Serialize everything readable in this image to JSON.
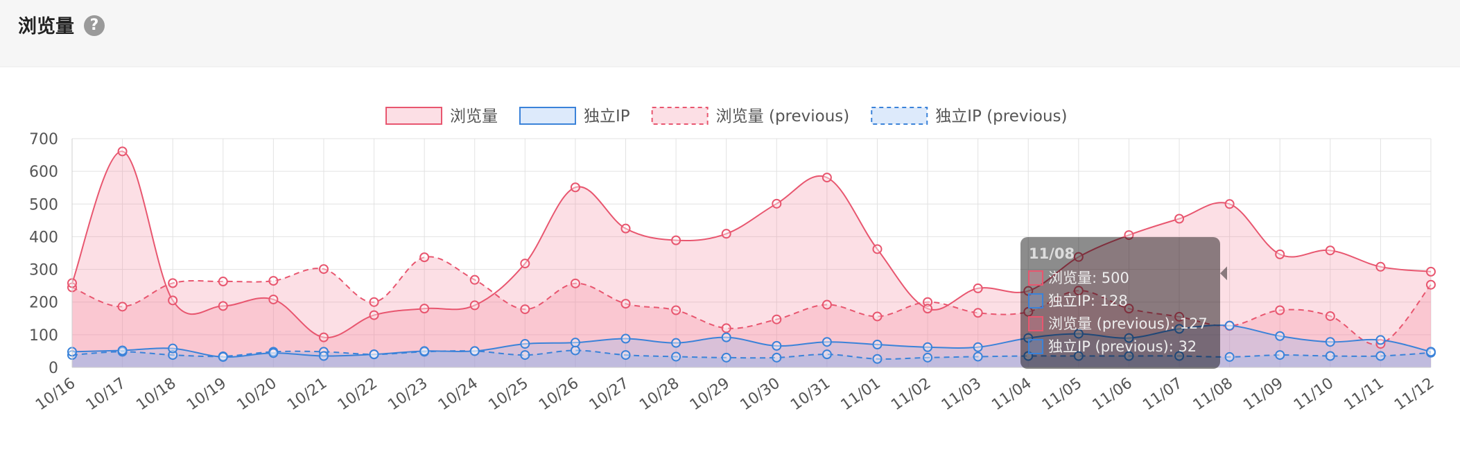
{
  "header": {
    "title": "浏览量",
    "help_icon": "question-circle-icon",
    "help_glyph": "?"
  },
  "colors": {
    "views": "#e8566f",
    "views_fill": "rgba(244,128,150,0.25)",
    "ip": "#3a82d9",
    "ip_fill": "rgba(120,170,240,0.25)",
    "grid": "#e2e2e2",
    "tick": "#555555"
  },
  "chart_data": {
    "type": "area",
    "categories": [
      "10/16",
      "10/17",
      "10/18",
      "10/19",
      "10/20",
      "10/21",
      "10/22",
      "10/23",
      "10/24",
      "10/25",
      "10/26",
      "10/27",
      "10/28",
      "10/29",
      "10/30",
      "10/31",
      "11/01",
      "11/02",
      "11/03",
      "11/04",
      "11/05",
      "11/06",
      "11/07",
      "11/08",
      "11/09",
      "11/10",
      "11/11",
      "11/12"
    ],
    "ylim": [
      0,
      700
    ],
    "yticks": [
      "0",
      "100",
      "200",
      "300",
      "400",
      "500",
      "600",
      "700"
    ],
    "grid": true,
    "legend_position": "top-center",
    "series": [
      {
        "name": "浏览量",
        "style": "solid",
        "fill": true,
        "values": [
          258,
          661,
          205,
          188,
          208,
          92,
          160,
          180,
          190,
          318,
          551,
          425,
          389,
          409,
          501,
          581,
          362,
          180,
          242,
          234,
          338,
          405,
          455,
          500,
          346,
          358,
          308,
          293
        ]
      },
      {
        "name": "独立IP",
        "style": "solid",
        "fill": true,
        "values": [
          48,
          52,
          58,
          32,
          44,
          35,
          40,
          50,
          50,
          72,
          76,
          88,
          75,
          92,
          66,
          78,
          70,
          62,
          62,
          90,
          103,
          90,
          118,
          128,
          96,
          78,
          84,
          48
        ]
      },
      {
        "name": "浏览量 (previous)",
        "style": "dashed",
        "fill": true,
        "values": [
          245,
          186,
          258,
          263,
          265,
          301,
          200,
          337,
          268,
          178,
          257,
          195,
          175,
          120,
          147,
          192,
          156,
          200,
          167,
          170,
          235,
          180,
          155,
          127,
          175,
          157,
          72,
          253
        ]
      },
      {
        "name": "独立IP (previous)",
        "style": "dashed",
        "fill": true,
        "values": [
          38,
          48,
          38,
          34,
          48,
          48,
          40,
          48,
          50,
          38,
          52,
          38,
          33,
          30,
          30,
          40,
          26,
          30,
          33,
          35,
          35,
          35,
          35,
          32,
          38,
          35,
          35,
          45
        ]
      }
    ]
  },
  "tooltip": {
    "title": "11/08",
    "rows": [
      "浏览量: 500",
      "独立IP: 128",
      "浏览量 (previous): 127",
      "独立IP (previous): 32"
    ],
    "category": "11/08"
  }
}
